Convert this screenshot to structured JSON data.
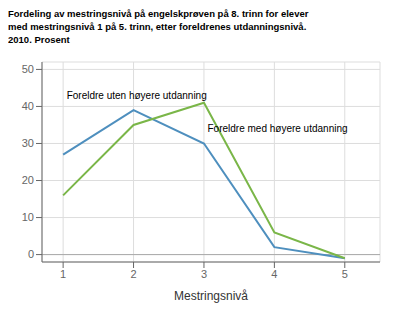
{
  "chart_data": {
    "type": "line",
    "title": "Fordeling av mestringsnivå på engelskprøven på 8. trinn for elever\nmed mestringsnivå 1 på 5. trinn, etter foreldrenes utdanningsnivå.\n2010. Prosent",
    "xlabel": "Mestringsnivå",
    "x": [
      1,
      2,
      3,
      4,
      5
    ],
    "series": [
      {
        "color": "#4e8fbe",
        "values": [
          27,
          39,
          30,
          2,
          -1
        ]
      },
      {
        "color": "#7ab648",
        "values": [
          16,
          35,
          41,
          6,
          -1
        ]
      }
    ],
    "annotations": [
      {
        "text": "Foreldre uten høyere utdanning",
        "x": 1.05,
        "y": 42
      },
      {
        "text": "Foreldre med høyere utdanning",
        "x": 3.05,
        "y": 33
      }
    ],
    "xlim": [
      0.7,
      5.5
    ],
    "xticks": [
      1,
      2,
      3,
      4,
      5
    ],
    "ylim": [
      -2,
      52
    ],
    "yticks": [
      0,
      10,
      20,
      30,
      40,
      50
    ],
    "grid": true
  }
}
